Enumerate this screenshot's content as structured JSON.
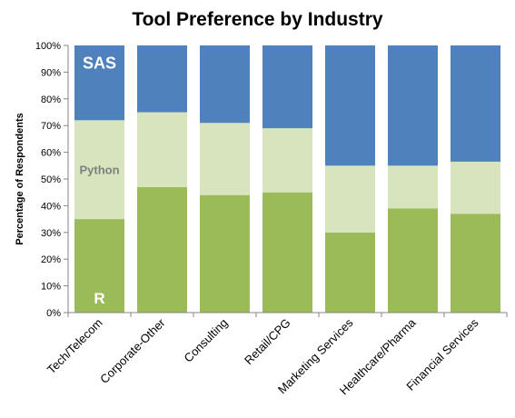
{
  "chart_data": {
    "type": "bar",
    "stacked": true,
    "title": "Tool Preference by Industry",
    "xlabel": "",
    "ylabel": "Percentage of Respondents",
    "ylim": [
      0,
      100
    ],
    "yticks": [
      "0%",
      "10%",
      "20%",
      "30%",
      "40%",
      "50%",
      "60%",
      "70%",
      "80%",
      "90%",
      "100%"
    ],
    "categories": [
      "Tech/Telecom",
      "Corporate-Other",
      "Consulting",
      "Retail/CPG",
      "Marketing Services",
      "Healthcare/Pharma",
      "Financial Services"
    ],
    "series": [
      {
        "name": "R",
        "color": "#9bbb59",
        "values": [
          35,
          47,
          44,
          45,
          30,
          39,
          37
        ]
      },
      {
        "name": "Python",
        "color": "#d7e4bd",
        "values": [
          37,
          28,
          27,
          24,
          25,
          16,
          19.5
        ]
      },
      {
        "name": "SAS",
        "color": "#4f81bd",
        "values": [
          28,
          25,
          29,
          31,
          45,
          45,
          43.5
        ]
      }
    ],
    "series_label_colors": {
      "R": "#ffffff",
      "Python": "#7f7f7f",
      "SAS": "#ffffff"
    },
    "grid": false,
    "legend": "none (series labeled inside first bar)"
  }
}
